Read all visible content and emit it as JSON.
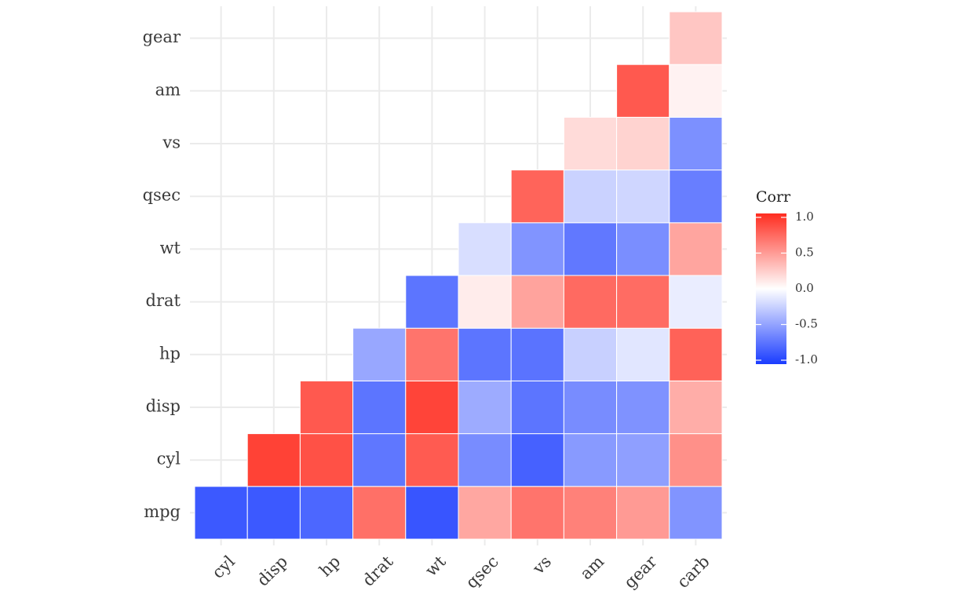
{
  "chart_data": {
    "type": "heatmap",
    "title": "",
    "xlabel": "",
    "ylabel": "",
    "x_categories": [
      "cyl",
      "disp",
      "hp",
      "drat",
      "wt",
      "qsec",
      "vs",
      "am",
      "gear",
      "carb"
    ],
    "y_categories": [
      "mpg",
      "cyl",
      "disp",
      "hp",
      "drat",
      "wt",
      "qsec",
      "vs",
      "am",
      "gear"
    ],
    "grid": true,
    "layout": "lower-triangle",
    "cells": [
      {
        "x": "cyl",
        "y": "mpg",
        "value": -0.85
      },
      {
        "x": "disp",
        "y": "mpg",
        "value": -0.85
      },
      {
        "x": "hp",
        "y": "mpg",
        "value": -0.78
      },
      {
        "x": "drat",
        "y": "mpg",
        "value": 0.68
      },
      {
        "x": "wt",
        "y": "mpg",
        "value": -0.87
      },
      {
        "x": "qsec",
        "y": "mpg",
        "value": 0.42
      },
      {
        "x": "vs",
        "y": "mpg",
        "value": 0.66
      },
      {
        "x": "am",
        "y": "mpg",
        "value": 0.6
      },
      {
        "x": "gear",
        "y": "mpg",
        "value": 0.48
      },
      {
        "x": "carb",
        "y": "mpg",
        "value": -0.55
      },
      {
        "x": "disp",
        "y": "cyl",
        "value": 0.9
      },
      {
        "x": "hp",
        "y": "cyl",
        "value": 0.83
      },
      {
        "x": "drat",
        "y": "cyl",
        "value": -0.7
      },
      {
        "x": "wt",
        "y": "cyl",
        "value": 0.78
      },
      {
        "x": "qsec",
        "y": "cyl",
        "value": -0.59
      },
      {
        "x": "vs",
        "y": "cyl",
        "value": -0.81
      },
      {
        "x": "am",
        "y": "cyl",
        "value": -0.52
      },
      {
        "x": "gear",
        "y": "cyl",
        "value": -0.49
      },
      {
        "x": "carb",
        "y": "cyl",
        "value": 0.53
      },
      {
        "x": "hp",
        "y": "disp",
        "value": 0.79
      },
      {
        "x": "drat",
        "y": "disp",
        "value": -0.71
      },
      {
        "x": "wt",
        "y": "disp",
        "value": 0.89
      },
      {
        "x": "qsec",
        "y": "disp",
        "value": -0.43
      },
      {
        "x": "vs",
        "y": "disp",
        "value": -0.71
      },
      {
        "x": "am",
        "y": "disp",
        "value": -0.59
      },
      {
        "x": "gear",
        "y": "disp",
        "value": -0.56
      },
      {
        "x": "carb",
        "y": "disp",
        "value": 0.39
      },
      {
        "x": "drat",
        "y": "hp",
        "value": -0.45
      },
      {
        "x": "wt",
        "y": "hp",
        "value": 0.66
      },
      {
        "x": "qsec",
        "y": "hp",
        "value": -0.71
      },
      {
        "x": "vs",
        "y": "hp",
        "value": -0.72
      },
      {
        "x": "am",
        "y": "hp",
        "value": -0.24
      },
      {
        "x": "gear",
        "y": "hp",
        "value": -0.13
      },
      {
        "x": "carb",
        "y": "hp",
        "value": 0.75
      },
      {
        "x": "wt",
        "y": "drat",
        "value": -0.71
      },
      {
        "x": "qsec",
        "y": "drat",
        "value": 0.09
      },
      {
        "x": "vs",
        "y": "drat",
        "value": 0.44
      },
      {
        "x": "am",
        "y": "drat",
        "value": 0.71
      },
      {
        "x": "gear",
        "y": "drat",
        "value": 0.7
      },
      {
        "x": "carb",
        "y": "drat",
        "value": -0.09
      },
      {
        "x": "qsec",
        "y": "wt",
        "value": -0.17
      },
      {
        "x": "vs",
        "y": "wt",
        "value": -0.55
      },
      {
        "x": "am",
        "y": "wt",
        "value": -0.69
      },
      {
        "x": "gear",
        "y": "wt",
        "value": -0.58
      },
      {
        "x": "carb",
        "y": "wt",
        "value": 0.43
      },
      {
        "x": "vs",
        "y": "qsec",
        "value": 0.74
      },
      {
        "x": "am",
        "y": "qsec",
        "value": -0.23
      },
      {
        "x": "gear",
        "y": "qsec",
        "value": -0.21
      },
      {
        "x": "carb",
        "y": "qsec",
        "value": -0.66
      },
      {
        "x": "am",
        "y": "vs",
        "value": 0.17
      },
      {
        "x": "gear",
        "y": "vs",
        "value": 0.21
      },
      {
        "x": "carb",
        "y": "vs",
        "value": -0.57
      },
      {
        "x": "gear",
        "y": "am",
        "value": 0.79
      },
      {
        "x": "carb",
        "y": "am",
        "value": 0.06
      },
      {
        "x": "carb",
        "y": "gear",
        "value": 0.27
      }
    ],
    "color_scale": {
      "low": "#1a3cff",
      "mid": "#ffffff",
      "high": "#ff2d20",
      "limits": [
        -1,
        1
      ]
    },
    "legend": {
      "title": "Corr",
      "placement": "right",
      "ticks": [
        {
          "value": 1,
          "label": "1.0"
        },
        {
          "value": 0.5,
          "label": "0.5"
        },
        {
          "value": 0,
          "label": "0.0"
        },
        {
          "value": -0.5,
          "label": "-0.5"
        },
        {
          "value": -1,
          "label": "-1.0"
        }
      ]
    },
    "colors": {
      "gridline": "#ebebeb",
      "tile_border": "#ffffff",
      "background": "#ffffff"
    }
  }
}
